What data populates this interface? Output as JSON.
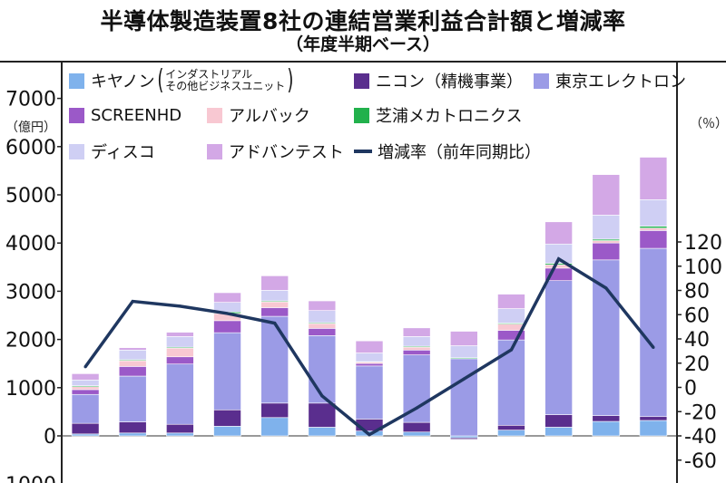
{
  "title": "半導体製造装置8社の連結営業利益合計額と増減率",
  "subtitle": "（年度半期ベース）",
  "colors": {
    "canon": "#7fb2ec",
    "nikon": "#5a2e8e",
    "tel": "#9b9be6",
    "screen": "#9b59c8",
    "ulvac": "#f8c8d2",
    "shibaura": "#22b14c",
    "disco": "#cfcff4",
    "advantest": "#d3a8e6",
    "line": "#1f3760"
  },
  "chart_data": {
    "type": "bar",
    "stacked": true,
    "categories": [
      "",
      "",
      "",
      "",
      "",
      "",
      "",
      "",
      "",
      "",
      "",
      "",
      ""
    ],
    "ylabel": "（億円）",
    "y2label": "（％）",
    "ylim": [
      -1000,
      7000
    ],
    "y2lim": [
      -60,
      120
    ],
    "yticks": [
      "7000",
      "6000",
      "5000",
      "4000",
      "3000",
      "2000",
      "1000",
      "0",
      "-1000"
    ],
    "y2ticks": [
      "120",
      "100",
      "80",
      "60",
      "40",
      "20",
      "0",
      "-20",
      "-40",
      "-60"
    ],
    "y_tick_values": [
      7000,
      6000,
      5000,
      4000,
      3000,
      2000,
      1000,
      0,
      -1000
    ],
    "y2_tick_values": [
      120,
      100,
      80,
      60,
      40,
      20,
      0,
      -20,
      -40,
      -60
    ],
    "series": [
      {
        "key": "canon",
        "name": "キヤノン",
        "values": [
          40,
          60,
          60,
          200,
          380,
          180,
          100,
          80,
          -40,
          120,
          180,
          300,
          320
        ]
      },
      {
        "key": "nikon",
        "name": "ニコン（精機事業）",
        "values": [
          220,
          230,
          180,
          340,
          300,
          500,
          250,
          200,
          -30,
          100,
          260,
          120,
          80
        ]
      },
      {
        "key": "tel",
        "name": "東京エレクトロン",
        "values": [
          600,
          950,
          1250,
          1600,
          1800,
          1400,
          1100,
          1400,
          1600,
          1770,
          2780,
          3230,
          3490
        ]
      },
      {
        "key": "screen",
        "name": "SCREENHD",
        "values": [
          100,
          200,
          150,
          250,
          180,
          150,
          50,
          100,
          0,
          200,
          260,
          350,
          370
        ]
      },
      {
        "key": "ulvac",
        "name": "アルバック",
        "values": [
          60,
          120,
          180,
          150,
          120,
          100,
          30,
          60,
          0,
          130,
          70,
          50,
          50
        ]
      },
      {
        "key": "shibaura",
        "name": "芝浦メカトロニクス",
        "values": [
          20,
          20,
          20,
          30,
          20,
          20,
          10,
          20,
          20,
          20,
          30,
          30,
          40
        ]
      },
      {
        "key": "disco",
        "name": "ディスコ",
        "values": [
          120,
          200,
          220,
          200,
          220,
          250,
          180,
          200,
          250,
          300,
          400,
          500,
          550
        ]
      },
      {
        "key": "advantest",
        "name": "アドバンテスト",
        "values": [
          130,
          50,
          90,
          200,
          300,
          200,
          250,
          180,
          300,
          300,
          460,
          840,
          880
        ]
      }
    ],
    "line": {
      "name": "増減率（前年同期比）",
      "values": [
        17,
        71,
        67,
        61,
        53,
        -7,
        -39,
        -17,
        7,
        31,
        106,
        82,
        33
      ]
    },
    "legend_note": [
      "インダストリアル",
      "その他ビジネスユニット"
    ]
  }
}
